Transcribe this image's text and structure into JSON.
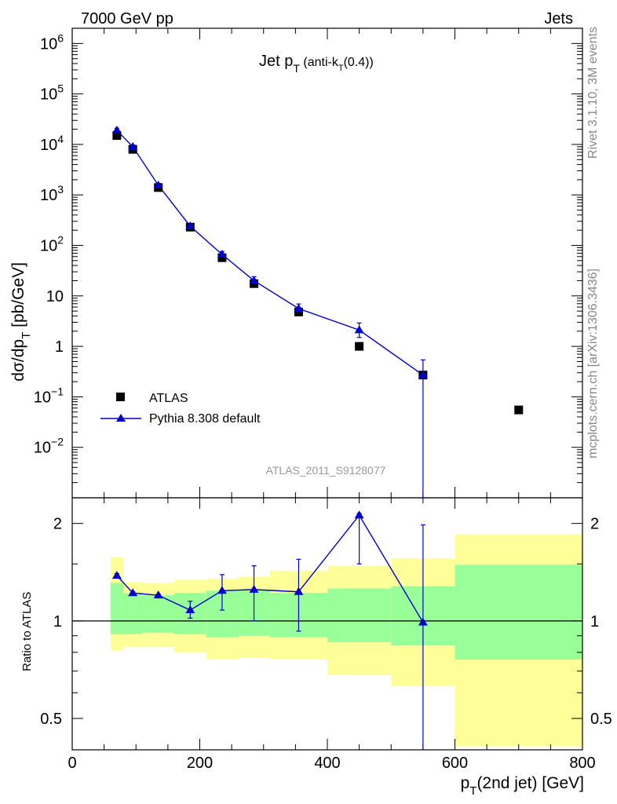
{
  "header": {
    "left": "7000 GeV pp",
    "right": "Jets"
  },
  "side_text": {
    "top": "Rivet 3.1.10,  3M events",
    "bottom": "mcplots.cern.ch [arXiv:1306.3436]"
  },
  "chart_data": [
    {
      "type": "scatter",
      "panel": "main",
      "title": {
        "main": "Jet p",
        "sub1": "T",
        "paren_open": " (anti-k",
        "sub2": "T",
        "paren_close": "(0.4))"
      },
      "ylabel": {
        "main": "dσ/dp",
        "sub": "T",
        "unit": " [pb/GeV]"
      },
      "yscale": "log",
      "ylim": [
        0.001,
        2000000
      ],
      "xlim": [
        0,
        800
      ],
      "analysis_label": "ATLAS_2011_S9128077",
      "y_ticks": [
        {
          "value": 1000000,
          "base": "10",
          "exp": "6"
        },
        {
          "value": 100000,
          "base": "10",
          "exp": "5"
        },
        {
          "value": 10000,
          "base": "10",
          "exp": "4"
        },
        {
          "value": 1000,
          "base": "10",
          "exp": "3"
        },
        {
          "value": 100,
          "base": "10",
          "exp": "2"
        },
        {
          "value": 10,
          "base": "10",
          "exp": ""
        },
        {
          "value": 1,
          "base": "1",
          "exp": ""
        },
        {
          "value": 0.1,
          "base": "10",
          "exp": "−1"
        },
        {
          "value": 0.01,
          "base": "10",
          "exp": "−2"
        }
      ],
      "legend": {
        "position": "bottom-left",
        "entries": [
          {
            "label": "ATLAS",
            "marker": "square",
            "color": "#000000"
          },
          {
            "label": "Pythia 8.308 default",
            "marker": "triangle",
            "color": "#0000cc"
          }
        ]
      },
      "series": [
        {
          "name": "ATLAS",
          "color": "#000000",
          "points": [
            {
              "x": 70,
              "y": 15000,
              "xerr": 10
            },
            {
              "x": 95,
              "y": 8000,
              "xerr": 15
            },
            {
              "x": 135,
              "y": 1400,
              "xerr": 25
            },
            {
              "x": 185,
              "y": 230,
              "xerr": 25
            },
            {
              "x": 235,
              "y": 57,
              "xerr": 25
            },
            {
              "x": 285,
              "y": 17.5,
              "xerr": 25
            },
            {
              "x": 355,
              "y": 4.8,
              "xerr": 45
            },
            {
              "x": 450,
              "y": 1.0,
              "xerr": 50
            },
            {
              "x": 550,
              "y": 0.27,
              "xerr": 50
            },
            {
              "x": 700,
              "y": 0.055,
              "xerr": 100
            }
          ]
        },
        {
          "name": "Pythia 8.308 default",
          "color": "#0000cc",
          "points": [
            {
              "x": 70,
              "y": 19000,
              "ylo": 17000,
              "yhi": 21000
            },
            {
              "x": 95,
              "y": 9000,
              "ylo": 8300,
              "yhi": 9700
            },
            {
              "x": 135,
              "y": 1550,
              "ylo": 1420,
              "yhi": 1680
            },
            {
              "x": 185,
              "y": 240,
              "ylo": 215,
              "yhi": 265
            },
            {
              "x": 235,
              "y": 66,
              "ylo": 56,
              "yhi": 76
            },
            {
              "x": 285,
              "y": 20,
              "ylo": 16,
              "yhi": 24
            },
            {
              "x": 355,
              "y": 5.6,
              "ylo": 4.4,
              "yhi": 6.9
            },
            {
              "x": 450,
              "y": 2.1,
              "ylo": 1.5,
              "yhi": 2.9
            },
            {
              "x": 550,
              "y": 0.27,
              "ylo": 0.0001,
              "yhi": 0.54
            }
          ]
        }
      ]
    },
    {
      "type": "scatter",
      "panel": "ratio",
      "ylabel": "Ratio to ATLAS",
      "yscale": "log",
      "ylim": [
        0.4,
        2.4
      ],
      "xlim": [
        0,
        800
      ],
      "xlabel": {
        "main": "p",
        "sub": "T",
        "rest": "(2nd jet) [GeV]"
      },
      "x_ticks": [
        0,
        200,
        400,
        600,
        800
      ],
      "y_ticks": [
        0.5,
        1,
        2
      ],
      "reference_line": 1,
      "bands": {
        "outer_color": "#ffff99",
        "inner_color": "#99ff99",
        "bins": [
          {
            "x0": 60,
            "x1": 80,
            "in_lo": 0.91,
            "in_hi": 1.31,
            "out_lo": 0.81,
            "out_hi": 1.57
          },
          {
            "x0": 80,
            "x1": 110,
            "in_lo": 0.91,
            "in_hi": 1.22,
            "out_lo": 0.83,
            "out_hi": 1.32
          },
          {
            "x0": 110,
            "x1": 160,
            "in_lo": 0.92,
            "in_hi": 1.2,
            "out_lo": 0.83,
            "out_hi": 1.31
          },
          {
            "x0": 160,
            "x1": 210,
            "in_lo": 0.91,
            "in_hi": 1.22,
            "out_lo": 0.8,
            "out_hi": 1.34
          },
          {
            "x0": 210,
            "x1": 260,
            "in_lo": 0.89,
            "in_hi": 1.24,
            "out_lo": 0.76,
            "out_hi": 1.35
          },
          {
            "x0": 260,
            "x1": 310,
            "in_lo": 0.9,
            "in_hi": 1.24,
            "out_lo": 0.77,
            "out_hi": 1.37
          },
          {
            "x0": 310,
            "x1": 400,
            "in_lo": 0.89,
            "in_hi": 1.22,
            "out_lo": 0.76,
            "out_hi": 1.43
          },
          {
            "x0": 400,
            "x1": 500,
            "in_lo": 0.86,
            "in_hi": 1.26,
            "out_lo": 0.68,
            "out_hi": 1.48
          },
          {
            "x0": 500,
            "x1": 600,
            "in_lo": 0.84,
            "in_hi": 1.28,
            "out_lo": 0.63,
            "out_hi": 1.56
          },
          {
            "x0": 600,
            "x1": 800,
            "in_lo": 0.76,
            "in_hi": 1.49,
            "out_lo": 0.41,
            "out_hi": 1.85
          }
        ]
      },
      "series": [
        {
          "name": "Pythia 8.308 default",
          "color": "#0000cc",
          "points": [
            {
              "x": 70,
              "y": 1.38,
              "ylo": 1.36,
              "yhi": 1.4
            },
            {
              "x": 95,
              "y": 1.22,
              "ylo": 1.21,
              "yhi": 1.23
            },
            {
              "x": 135,
              "y": 1.2,
              "ylo": 1.19,
              "yhi": 1.21
            },
            {
              "x": 185,
              "y": 1.08,
              "ylo": 1.02,
              "yhi": 1.15
            },
            {
              "x": 235,
              "y": 1.24,
              "ylo": 1.08,
              "yhi": 1.39
            },
            {
              "x": 285,
              "y": 1.25,
              "ylo": 1.0,
              "yhi": 1.48
            },
            {
              "x": 355,
              "y": 1.23,
              "ylo": 0.93,
              "yhi": 1.55
            },
            {
              "x": 450,
              "y": 2.12,
              "ylo": 1.5,
              "yhi": 2.15
            },
            {
              "x": 550,
              "y": 0.99,
              "ylo": 0.35,
              "yhi": 1.98
            }
          ]
        }
      ]
    }
  ]
}
